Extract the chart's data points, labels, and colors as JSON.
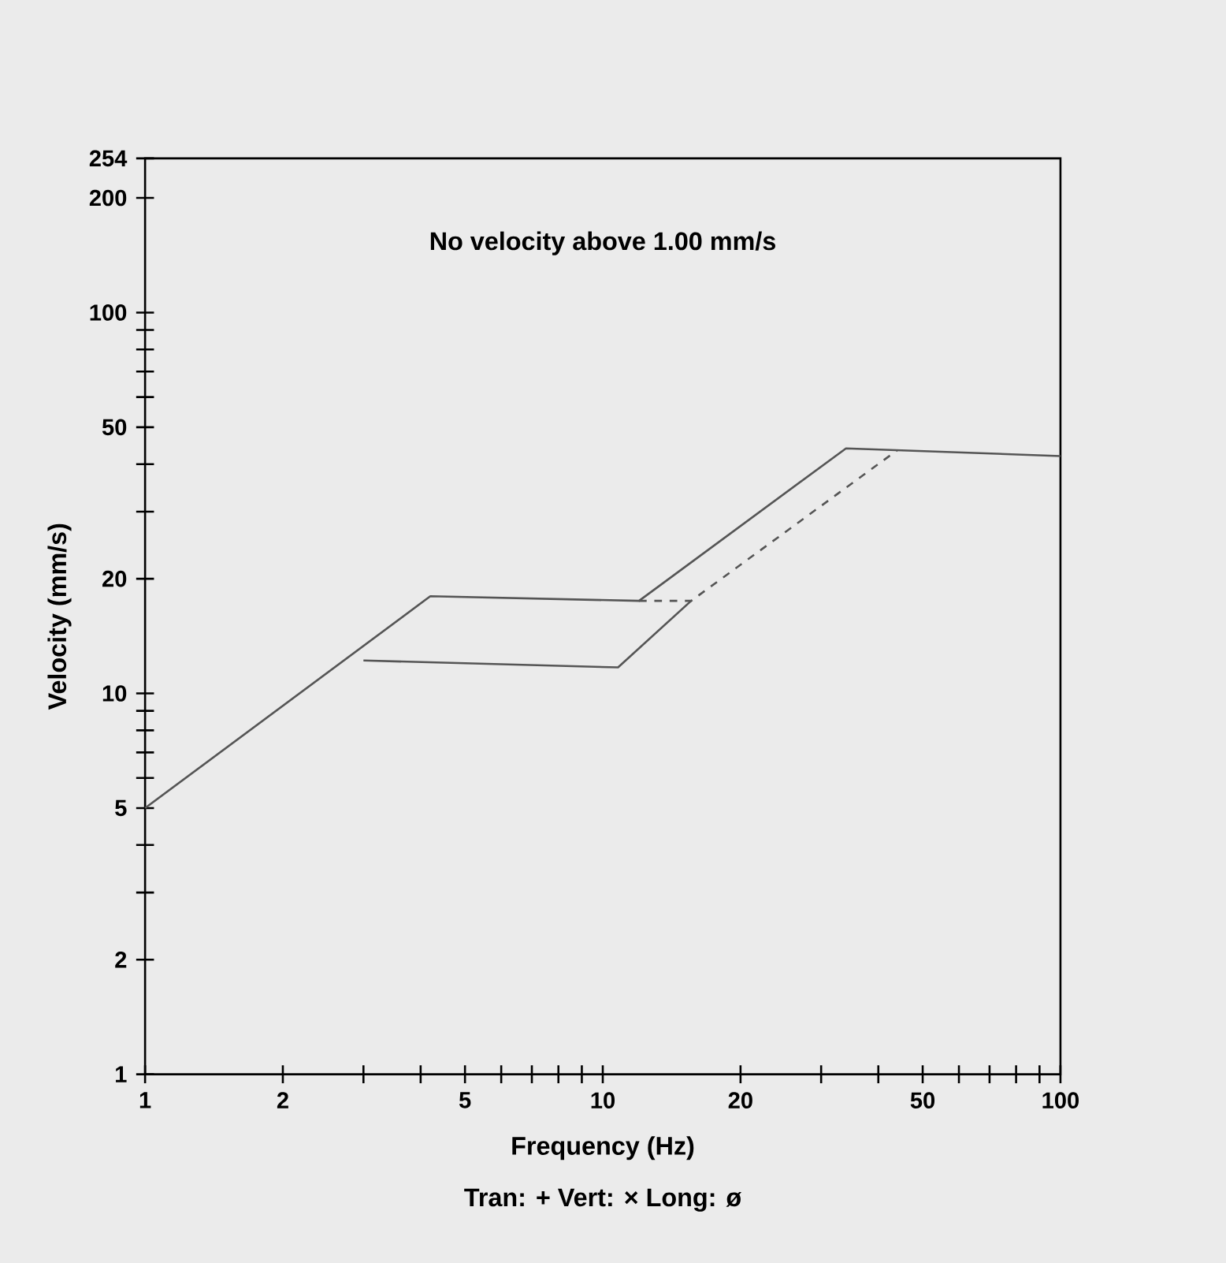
{
  "chart_data": {
    "type": "line",
    "xlabel": "Frequency (Hz)",
    "ylabel": "Velocity (mm/s)",
    "log": "xy",
    "xlim": [
      1,
      100
    ],
    "ylim": [
      1,
      254
    ],
    "xticks": [
      1,
      2,
      {
        "value": 3,
        "label": null
      },
      {
        "value": 4,
        "label": null
      },
      5,
      {
        "value": 6,
        "label": null
      },
      {
        "value": 7,
        "label": null
      },
      {
        "value": 8,
        "label": null
      },
      {
        "value": 9,
        "label": null
      },
      10,
      20,
      {
        "value": 30,
        "label": null
      },
      {
        "value": 40,
        "label": null
      },
      50,
      {
        "value": 60,
        "label": null
      },
      {
        "value": 70,
        "label": null
      },
      {
        "value": 80,
        "label": null
      },
      {
        "value": 90,
        "label": null
      },
      100
    ],
    "yticks": [
      1,
      2,
      {
        "value": 3,
        "label": null
      },
      {
        "value": 4,
        "label": null
      },
      5,
      {
        "value": 6,
        "label": null
      },
      {
        "value": 7,
        "label": null
      },
      {
        "value": 8,
        "label": null
      },
      {
        "value": 9,
        "label": null
      },
      10,
      20,
      {
        "value": 30,
        "label": null
      },
      {
        "value": 40,
        "label": null
      },
      50,
      {
        "value": 60,
        "label": null
      },
      {
        "value": 70,
        "label": null
      },
      {
        "value": 80,
        "label": null
      },
      {
        "value": 90,
        "label": null
      },
      100,
      200,
      254
    ],
    "grid": false,
    "marker": "none",
    "series": [
      {
        "color": "#555555",
        "line_style": "solid",
        "x": [
          1,
          4.2,
          12,
          34,
          100
        ],
        "values": [
          5,
          18,
          17.5,
          44,
          42
        ]
      },
      {
        "color": "#555555",
        "line_style": "solid",
        "x": [
          3,
          10.8,
          15.6
        ],
        "values": [
          12.2,
          11.7,
          17.5
        ]
      },
      {
        "color": "#555555",
        "line_style": "dashed",
        "x": [
          12,
          15.6,
          44
        ],
        "values": [
          17.5,
          17.5,
          43.5
        ]
      }
    ],
    "annotations": [
      "No velocity above 1.00 mm/s",
      "Tran: + Vert: × Long: ø"
    ]
  }
}
